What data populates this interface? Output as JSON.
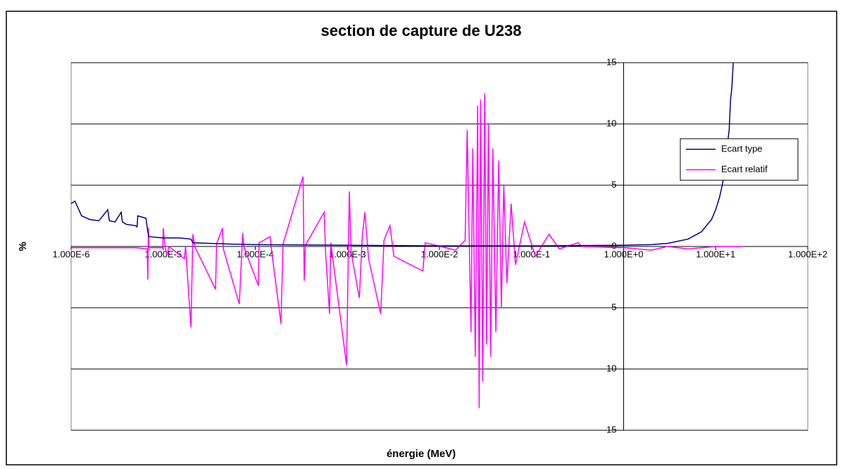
{
  "chart_data": {
    "type": "line",
    "title": "section de capture de U238",
    "xlabel": "énergie (MeV)",
    "ylabel": "%",
    "xscale": "log",
    "xlim": [
      1e-06,
      100
    ],
    "ylim": [
      -15,
      15
    ],
    "xticks": [
      {
        "value": 1e-06,
        "label": "1.000E-6"
      },
      {
        "value": 1e-05,
        "label": "1.000E-5"
      },
      {
        "value": 0.0001,
        "label": "1.000E-4"
      },
      {
        "value": 0.001,
        "label": "1.000E-3"
      },
      {
        "value": 0.01,
        "label": "1.000E-2"
      },
      {
        "value": 0.1,
        "label": "1.000E-1"
      },
      {
        "value": 1,
        "label": "1.000E+0"
      },
      {
        "value": 10,
        "label": "1.000E+1"
      },
      {
        "value": 100,
        "label": "1.000E+2"
      }
    ],
    "yticks": [
      15,
      10,
      5,
      0,
      -5,
      -10,
      -15
    ],
    "y_axis_crosses_at": 1,
    "grid": true,
    "legend": "right",
    "series": [
      {
        "name": "Ecart type",
        "color": "#000080",
        "x": [
          1e-06,
          1.1e-06,
          1.3e-06,
          1.6e-06,
          2e-06,
          2.5e-06,
          2.6e-06,
          3e-06,
          3.5e-06,
          3.6e-06,
          4e-06,
          5e-06,
          5.2e-06,
          5.3e-06,
          6.5e-06,
          6.8e-06,
          7e-06,
          1e-05,
          1.5e-05,
          2e-05,
          2.1e-05,
          5e-05,
          0.0001,
          0.001,
          0.01,
          0.1,
          1,
          2,
          3,
          5,
          7,
          9,
          10,
          11,
          12,
          13,
          14,
          14.5,
          15,
          15.5
        ],
        "values": [
          3.5,
          3.7,
          2.5,
          2.2,
          2.1,
          3.0,
          2.1,
          2.0,
          2.8,
          2.0,
          1.8,
          1.7,
          1.6,
          2.5,
          2.3,
          1.2,
          0.8,
          0.7,
          0.7,
          0.6,
          0.3,
          0.2,
          0.15,
          0.1,
          0.05,
          0.05,
          0.1,
          0.15,
          0.25,
          0.6,
          1.2,
          2.2,
          3,
          4,
          5.3,
          7.5,
          9.5,
          12,
          13,
          15
        ]
      },
      {
        "name": "Ecart relatif",
        "color": "#ff00ff",
        "x": [
          1e-06,
          5e-06,
          6.7e-06,
          6.8e-06,
          6.9e-06,
          7e-06,
          9.9e-06,
          1e-05,
          1.05e-05,
          1.1e-05,
          1.15e-05,
          1.7e-05,
          1.75e-05,
          2e-05,
          2.1e-05,
          2.2e-05,
          3.7e-05,
          3.8e-05,
          4.4e-05,
          4.5e-05,
          6.7e-05,
          7.3e-05,
          7.5e-05,
          0.000108,
          0.00011,
          0.000145,
          0.00015,
          0.00019,
          0.0002,
          0.00033,
          0.00034,
          0.00035,
          0.00056,
          0.00058,
          0.00064,
          0.00066,
          0.00098,
          0.00105,
          0.0011,
          0.00135,
          0.00145,
          0.00155,
          0.0017,
          0.0023,
          0.0025,
          0.0029,
          0.0032,
          0.0066,
          0.007,
          0.015,
          0.019,
          0.02,
          0.022,
          0.023,
          0.0245,
          0.026,
          0.027,
          0.028,
          0.0295,
          0.031,
          0.0325,
          0.034,
          0.036,
          0.038,
          0.041,
          0.044,
          0.047,
          0.05,
          0.054,
          0.06,
          0.067,
          0.084,
          0.11,
          0.155,
          0.2,
          0.32,
          0.35,
          1,
          2,
          3,
          5,
          10,
          20
        ],
        "values": [
          -0.1,
          -0.1,
          -0.2,
          -2.7,
          1.5,
          -0.1,
          -0.1,
          1.5,
          -0.1,
          -0.7,
          0,
          -1.0,
          0,
          -6.6,
          1.0,
          0,
          -3.5,
          0.2,
          1.5,
          -0.2,
          -4.7,
          1.1,
          0,
          -3.2,
          0.3,
          0.8,
          -0.3,
          -6.3,
          0.2,
          5.7,
          -2.8,
          0.1,
          2.8,
          -0.5,
          -5.5,
          0.3,
          -9.7,
          4.5,
          -0.5,
          -4.2,
          0.8,
          2.8,
          -1.0,
          -5.5,
          0.5,
          1.7,
          -0.8,
          -2.0,
          0.3,
          -0.3,
          0.5,
          9.5,
          -7,
          8,
          -9,
          11.5,
          -13.2,
          12,
          -11,
          12.5,
          -8,
          10,
          -9,
          8,
          -7,
          7,
          -5,
          5,
          -3,
          3.5,
          -1.5,
          2,
          -0.8,
          1,
          -0.2,
          0.3,
          0,
          -0.1,
          -0.3,
          0,
          -0.2,
          0,
          0
        ]
      }
    ]
  }
}
